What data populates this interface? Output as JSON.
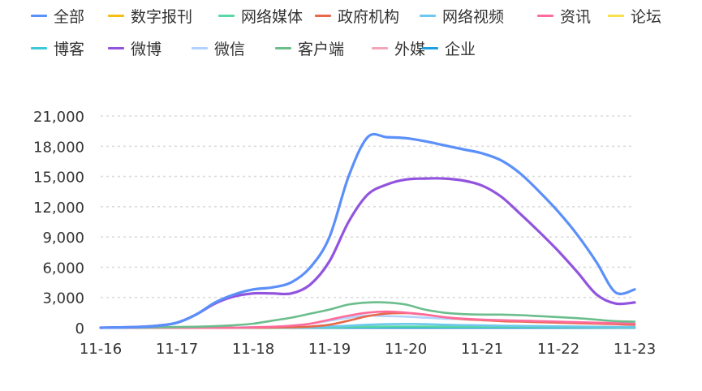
{
  "chart_data": {
    "type": "line",
    "title": "",
    "xlabel": "",
    "ylabel": "",
    "categories": [
      "11-16",
      "11-17",
      "11-18",
      "11-19",
      "11-20",
      "11-21",
      "11-22",
      "11-23"
    ],
    "x": [
      0,
      0.25,
      0.5,
      0.75,
      1,
      1.25,
      1.5,
      1.75,
      2,
      2.25,
      2.5,
      2.75,
      3,
      3.25,
      3.5,
      3.75,
      4,
      4.25,
      4.5,
      4.75,
      5,
      5.25,
      5.5,
      5.75,
      6,
      6.25,
      6.5,
      6.75,
      7
    ],
    "ylim": [
      0,
      21000
    ],
    "y_ticks": [
      0,
      3000,
      6000,
      9000,
      12000,
      15000,
      18000,
      21000
    ],
    "y_tick_labels": [
      "0",
      "3,000",
      "6,000",
      "9,000",
      "12,000",
      "15,000",
      "18,000",
      "21,000"
    ],
    "grid": true,
    "legend_position": "top-left",
    "series": [
      {
        "name": "全部",
        "color": "#5b8ff9",
        "values": [
          0,
          30,
          80,
          200,
          500,
          1300,
          2500,
          3300,
          3800,
          4000,
          4500,
          6000,
          9000,
          15000,
          18900,
          18900,
          18800,
          18500,
          18100,
          17700,
          17300,
          16600,
          15300,
          13500,
          11500,
          9200,
          6500,
          3500,
          3800
        ]
      },
      {
        "name": "数字报刊",
        "color": "#f6bd16",
        "values": [
          0,
          0,
          0,
          0,
          0,
          0,
          0,
          0,
          0,
          0,
          0,
          0,
          0,
          0,
          0,
          0,
          0,
          0,
          0,
          0,
          0,
          0,
          0,
          0,
          0,
          0,
          0,
          0,
          0
        ]
      },
      {
        "name": "网络媒体",
        "color": "#5ad8a6",
        "values": [
          0,
          0,
          0,
          0,
          0,
          0,
          0,
          0,
          0,
          10,
          20,
          40,
          60,
          80,
          100,
          110,
          110,
          110,
          100,
          100,
          100,
          100,
          100,
          90,
          80,
          70,
          60,
          50,
          40
        ]
      },
      {
        "name": "政府机构",
        "color": "#e8684a",
        "values": [
          0,
          0,
          0,
          0,
          0,
          0,
          0,
          0,
          0,
          20,
          50,
          120,
          300,
          700,
          1150,
          1400,
          1450,
          1300,
          1050,
          850,
          750,
          650,
          600,
          550,
          500,
          450,
          400,
          350,
          300
        ]
      },
      {
        "name": "网络视频",
        "color": "#6dc8ec",
        "values": [
          0,
          0,
          0,
          0,
          0,
          0,
          0,
          0,
          0,
          10,
          30,
          60,
          120,
          200,
          300,
          350,
          380,
          350,
          300,
          260,
          230,
          200,
          180,
          160,
          140,
          120,
          100,
          80,
          70
        ]
      },
      {
        "name": "资讯",
        "color": "#ff6b9a",
        "values": [
          0,
          0,
          0,
          0,
          0,
          0,
          0,
          0,
          50,
          100,
          200,
          400,
          800,
          1200,
          1500,
          1600,
          1500,
          1300,
          1050,
          900,
          800,
          750,
          700,
          650,
          600,
          550,
          500,
          450,
          400
        ]
      },
      {
        "name": "论坛",
        "color": "#f7e04b",
        "values": [
          0,
          0,
          0,
          0,
          0,
          0,
          0,
          0,
          0,
          0,
          0,
          0,
          0,
          0,
          0,
          0,
          0,
          0,
          0,
          0,
          0,
          0,
          0,
          0,
          0,
          0,
          0,
          0,
          0
        ]
      },
      {
        "name": "博客",
        "color": "#3ec9d6",
        "values": [
          0,
          0,
          0,
          0,
          0,
          0,
          0,
          0,
          0,
          0,
          0,
          0,
          0,
          0,
          0,
          0,
          0,
          0,
          0,
          0,
          0,
          0,
          0,
          0,
          0,
          0,
          0,
          0,
          0
        ]
      },
      {
        "name": "微博",
        "color": "#9254de",
        "values": [
          0,
          30,
          80,
          200,
          500,
          1300,
          2400,
          3100,
          3400,
          3400,
          3400,
          4300,
          6600,
          10500,
          13200,
          14200,
          14700,
          14800,
          14800,
          14600,
          14100,
          13000,
          11300,
          9500,
          7600,
          5500,
          3300,
          2400,
          2500
        ]
      },
      {
        "name": "微信",
        "color": "#b1d2ff",
        "values": [
          0,
          0,
          0,
          0,
          0,
          0,
          0,
          20,
          50,
          100,
          200,
          400,
          700,
          1000,
          1200,
          1150,
          1100,
          1000,
          900,
          850,
          800,
          750,
          700,
          650,
          600,
          550,
          500,
          450,
          400
        ]
      },
      {
        "name": "客户端",
        "color": "#6bbd8c",
        "values": [
          0,
          10,
          20,
          40,
          70,
          100,
          150,
          250,
          400,
          700,
          1000,
          1400,
          1800,
          2300,
          2500,
          2500,
          2300,
          1800,
          1500,
          1350,
          1300,
          1300,
          1250,
          1150,
          1050,
          950,
          800,
          650,
          600
        ]
      },
      {
        "name": "外媒",
        "color": "#f2a6b8",
        "values": [
          0,
          0,
          0,
          0,
          0,
          0,
          0,
          0,
          0,
          0,
          0,
          0,
          0,
          0,
          0,
          0,
          0,
          0,
          0,
          0,
          0,
          0,
          0,
          0,
          0,
          0,
          0,
          0,
          0
        ]
      },
      {
        "name": "企业",
        "color": "#1e9fdf",
        "values": [
          0,
          0,
          0,
          0,
          0,
          0,
          0,
          0,
          0,
          0,
          0,
          0,
          0,
          0,
          0,
          0,
          0,
          0,
          0,
          0,
          0,
          0,
          0,
          0,
          0,
          0,
          0,
          0,
          0
        ]
      }
    ]
  }
}
